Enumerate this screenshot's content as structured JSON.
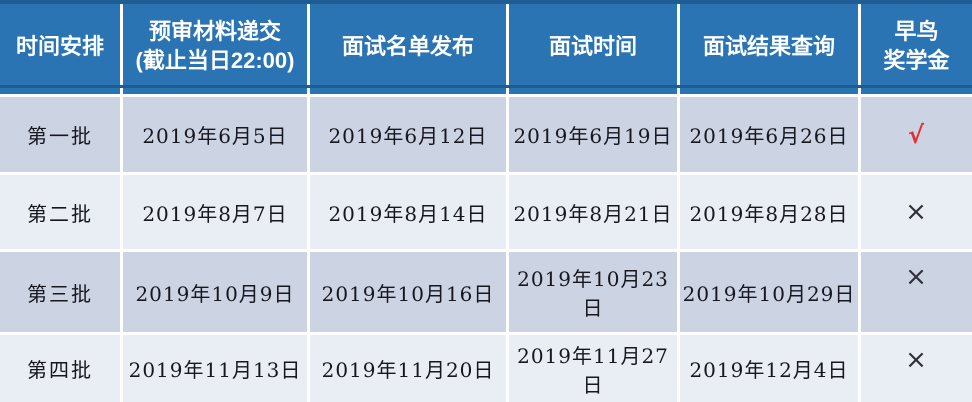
{
  "chart_data": {
    "type": "table",
    "title": "",
    "columns": [
      "时间安排",
      "预审材料递交 (截止当日22:00)",
      "面试名单发布",
      "面试时间",
      "面试结果查询",
      "早鸟奖学金"
    ],
    "rows": [
      [
        "第一批",
        "2019年6月5日",
        "2019年6月12日",
        "2019年6月19日",
        "2019年6月26日",
        "√"
      ],
      [
        "第二批",
        "2019年8月7日",
        "2019年8月14日",
        "2019年8月21日",
        "2019年8月28日",
        "×"
      ],
      [
        "第三批",
        "2019年10月9日",
        "2019年10月16日",
        "2019年10月23日",
        "2019年10月29日",
        "×"
      ],
      [
        "第四批",
        "2019年11月13日",
        "2019年11月20日",
        "2019年11月27日",
        "2019年12月4日",
        "×"
      ]
    ]
  },
  "header": {
    "cells": [
      {
        "line1": "时间安排",
        "line2": ""
      },
      {
        "line1": "预审材料递交",
        "line2": "(截止当日22:00)"
      },
      {
        "line1": "面试名单发布",
        "line2": ""
      },
      {
        "line1": "面试时间",
        "line2": ""
      },
      {
        "line1": "面试结果查询",
        "line2": ""
      },
      {
        "line1": "早鸟",
        "line2": "奖学金"
      }
    ]
  },
  "colors": {
    "header_bg": "#2b74b4",
    "header_accent_line": "#1e5c94",
    "row_dark_bg": "#ccd3e3",
    "row_light_bg": "#e9edf4",
    "check_mark": "#e03130",
    "cross_mark": "#30303c",
    "header_text": "#ffffff",
    "body_text": "#17171f"
  }
}
